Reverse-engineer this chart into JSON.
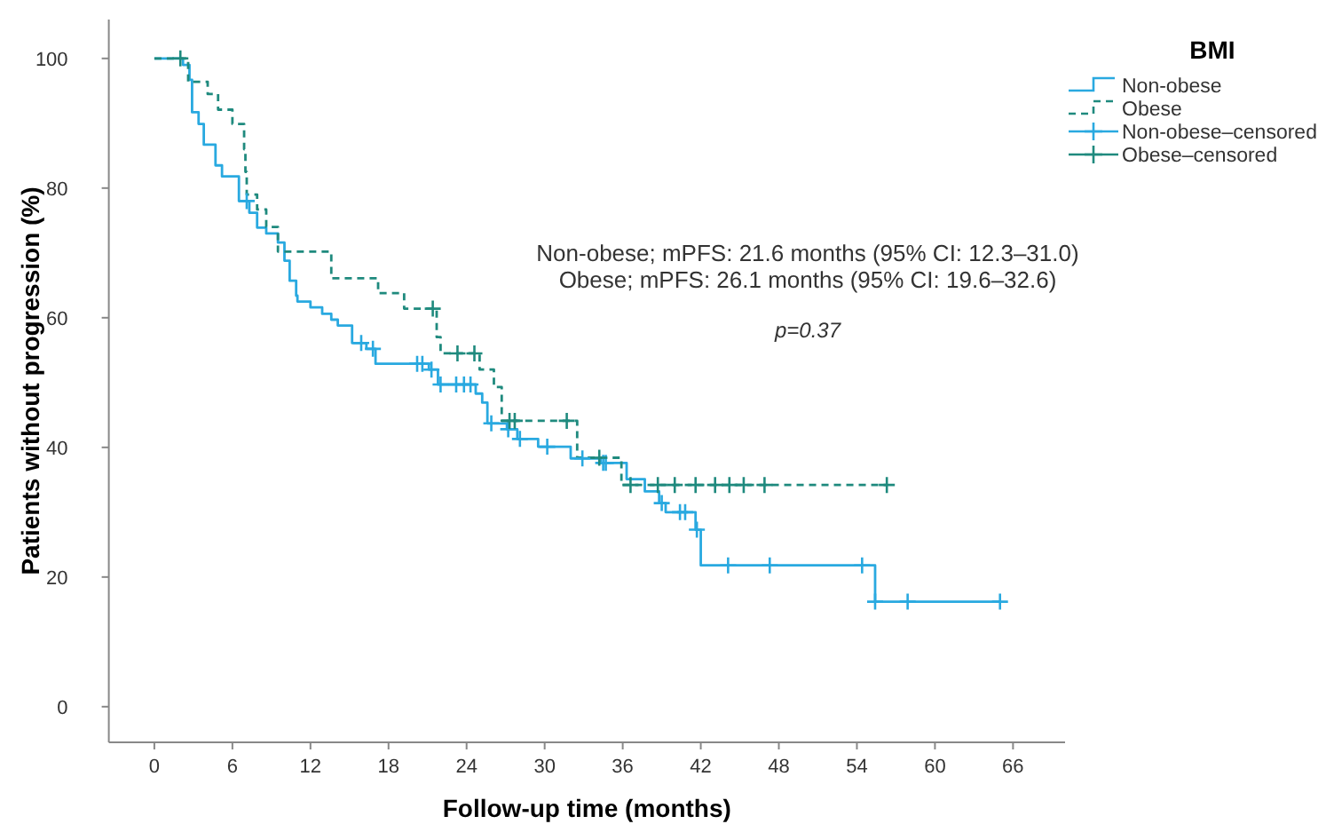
{
  "chart_data": {
    "type": "step",
    "xlabel": "Follow-up time (months)",
    "ylabel": "Patients without progression (%)",
    "legend_title": "BMI",
    "legend": "top right",
    "grid": false,
    "xlim": [
      -3.5,
      70
    ],
    "xticks": [
      0,
      6,
      12,
      18,
      24,
      30,
      36,
      42,
      48,
      54,
      60,
      66
    ],
    "ylim": [
      -5.5,
      106
    ],
    "yticks": [
      0,
      20,
      40,
      60,
      80,
      100
    ],
    "annotations": [
      "Non-obese; mPFS: 21.6 months (95% CI: 12.3–31.0)",
      "Obese; mPFS: 26.1 months (95% CI: 19.6–32.6)",
      "p=0.37"
    ],
    "series": [
      {
        "name": "Non-obese",
        "color": "#29a9e0",
        "line_style": "solid",
        "x": [
          0,
          2.2,
          2.7,
          2.9,
          3.4,
          3.8,
          4.7,
          5.2,
          6.5,
          7.3,
          7.9,
          8.6,
          9.5,
          10,
          10.4,
          10.9,
          11,
          12,
          12.9,
          13.6,
          14.1,
          15.2,
          16.3,
          17,
          21.1,
          21.8,
          24.7,
          25.2,
          25.6,
          27.1,
          27.9,
          29.5,
          32,
          34.3,
          36.3,
          37.7,
          38.8,
          39.3,
          41.6,
          42,
          55.4,
          65
        ],
        "values": [
          100,
          99,
          96.7,
          91.7,
          89.9,
          86.7,
          83.5,
          81.8,
          78,
          76.2,
          73.9,
          73,
          71.6,
          68.8,
          65.7,
          63.4,
          62.5,
          61.6,
          60.6,
          59.7,
          58.8,
          56.1,
          55.2,
          52.9,
          52,
          49.7,
          48.3,
          46.9,
          43.7,
          42.8,
          41.3,
          40.1,
          38.3,
          37.6,
          35.1,
          33.2,
          31.4,
          30,
          27.3,
          21.8,
          16.2,
          16.2
        ]
      },
      {
        "name": "Obese",
        "color": "#1f8a7e",
        "line_style": "dashed",
        "x": [
          0,
          2.6,
          4.1,
          4.9,
          6.0,
          6.9,
          7.0,
          7.1,
          7.9,
          8.6,
          9.5,
          13.6,
          17.2,
          19.2,
          21.7,
          22,
          25,
          26.1,
          26.7,
          32.5,
          35.9,
          56.3
        ],
        "values": [
          100,
          96.4,
          94.5,
          92.1,
          89.9,
          86,
          82.5,
          79,
          76.7,
          74,
          70.2,
          66.1,
          63.8,
          61.4,
          57,
          54.5,
          52,
          49.3,
          44.1,
          38.4,
          34.2,
          34.2
        ]
      },
      {
        "name": "Non-obese–censored",
        "type": "scatter",
        "marker": "cross",
        "color": "#29a9e0",
        "x": [
          7.1,
          15.9,
          16.8,
          20.2,
          20.6,
          21.3,
          22,
          23.2,
          23.8,
          24.3,
          25.9,
          27.2,
          28.1,
          30.2,
          32.9,
          34.5,
          34.7,
          39,
          40.4,
          40.8,
          41.7,
          44.1,
          47.3,
          54.4,
          55.4,
          57.9,
          65
        ],
        "values": [
          78,
          56.1,
          55.2,
          52.9,
          52.9,
          52,
          49.7,
          49.7,
          49.7,
          49.7,
          43.7,
          42.8,
          41.3,
          40.1,
          38.3,
          37.6,
          37.6,
          31.4,
          30,
          30,
          27.3,
          21.8,
          21.8,
          21.8,
          16.2,
          16.2,
          16.2
        ]
      },
      {
        "name": "Obese–censored",
        "type": "scatter",
        "marker": "cross",
        "color": "#1f8a7e",
        "x": [
          2.0,
          21.4,
          23.3,
          24.6,
          27.3,
          27.7,
          31.7,
          34.2,
          36.6,
          38.7,
          40.0,
          41.6,
          43.1,
          44.2,
          45.3,
          46.9,
          56.3
        ],
        "values": [
          100,
          61.4,
          54.5,
          54.5,
          44.1,
          44.1,
          44.1,
          38.4,
          34.2,
          34.2,
          34.2,
          34.2,
          34.2,
          34.2,
          34.2,
          34.2,
          34.2
        ]
      }
    ]
  }
}
